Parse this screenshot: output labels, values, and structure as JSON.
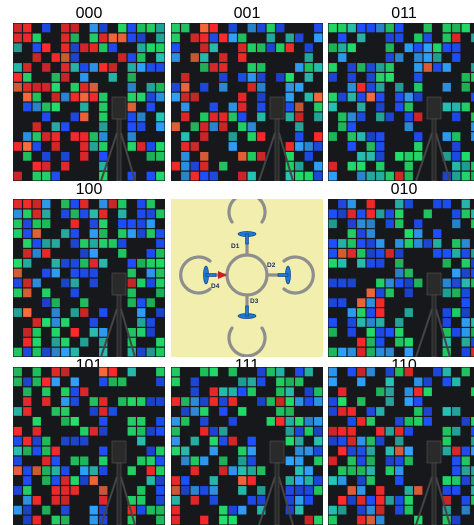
{
  "grid": {
    "panels": [
      {
        "label": "000",
        "seed": 11,
        "red_bias": 0.65
      },
      {
        "label": "001",
        "seed": 23,
        "red_bias": 0.55
      },
      {
        "label": "011",
        "seed": 37,
        "red_bias": 0.12
      },
      {
        "label": "100",
        "seed": 41,
        "red_bias": 0.25
      },
      {
        "label": "",
        "diagram": true
      },
      {
        "label": "010",
        "seed": 53,
        "red_bias": 0.1
      },
      {
        "label": "101",
        "seed": 67,
        "red_bias": 0.45
      },
      {
        "label": "111",
        "seed": 79,
        "red_bias": 0.3
      },
      {
        "label": "110",
        "seed": 97,
        "red_bias": 0.25
      }
    ]
  },
  "diagram": {
    "motors": [
      "D1",
      "D2",
      "D3",
      "D4"
    ]
  },
  "colors": {
    "red": "#ff2a2a",
    "orange": "#ff6a3a",
    "green": "#22e06a",
    "teal": "#27c3b5",
    "blue": "#1e50ff",
    "cyan": "#2fa3ff",
    "dark": "#16181c",
    "diagram_bg": "#f1eeae",
    "ring": "#8e8e8e",
    "prop": "#1f78d1"
  }
}
